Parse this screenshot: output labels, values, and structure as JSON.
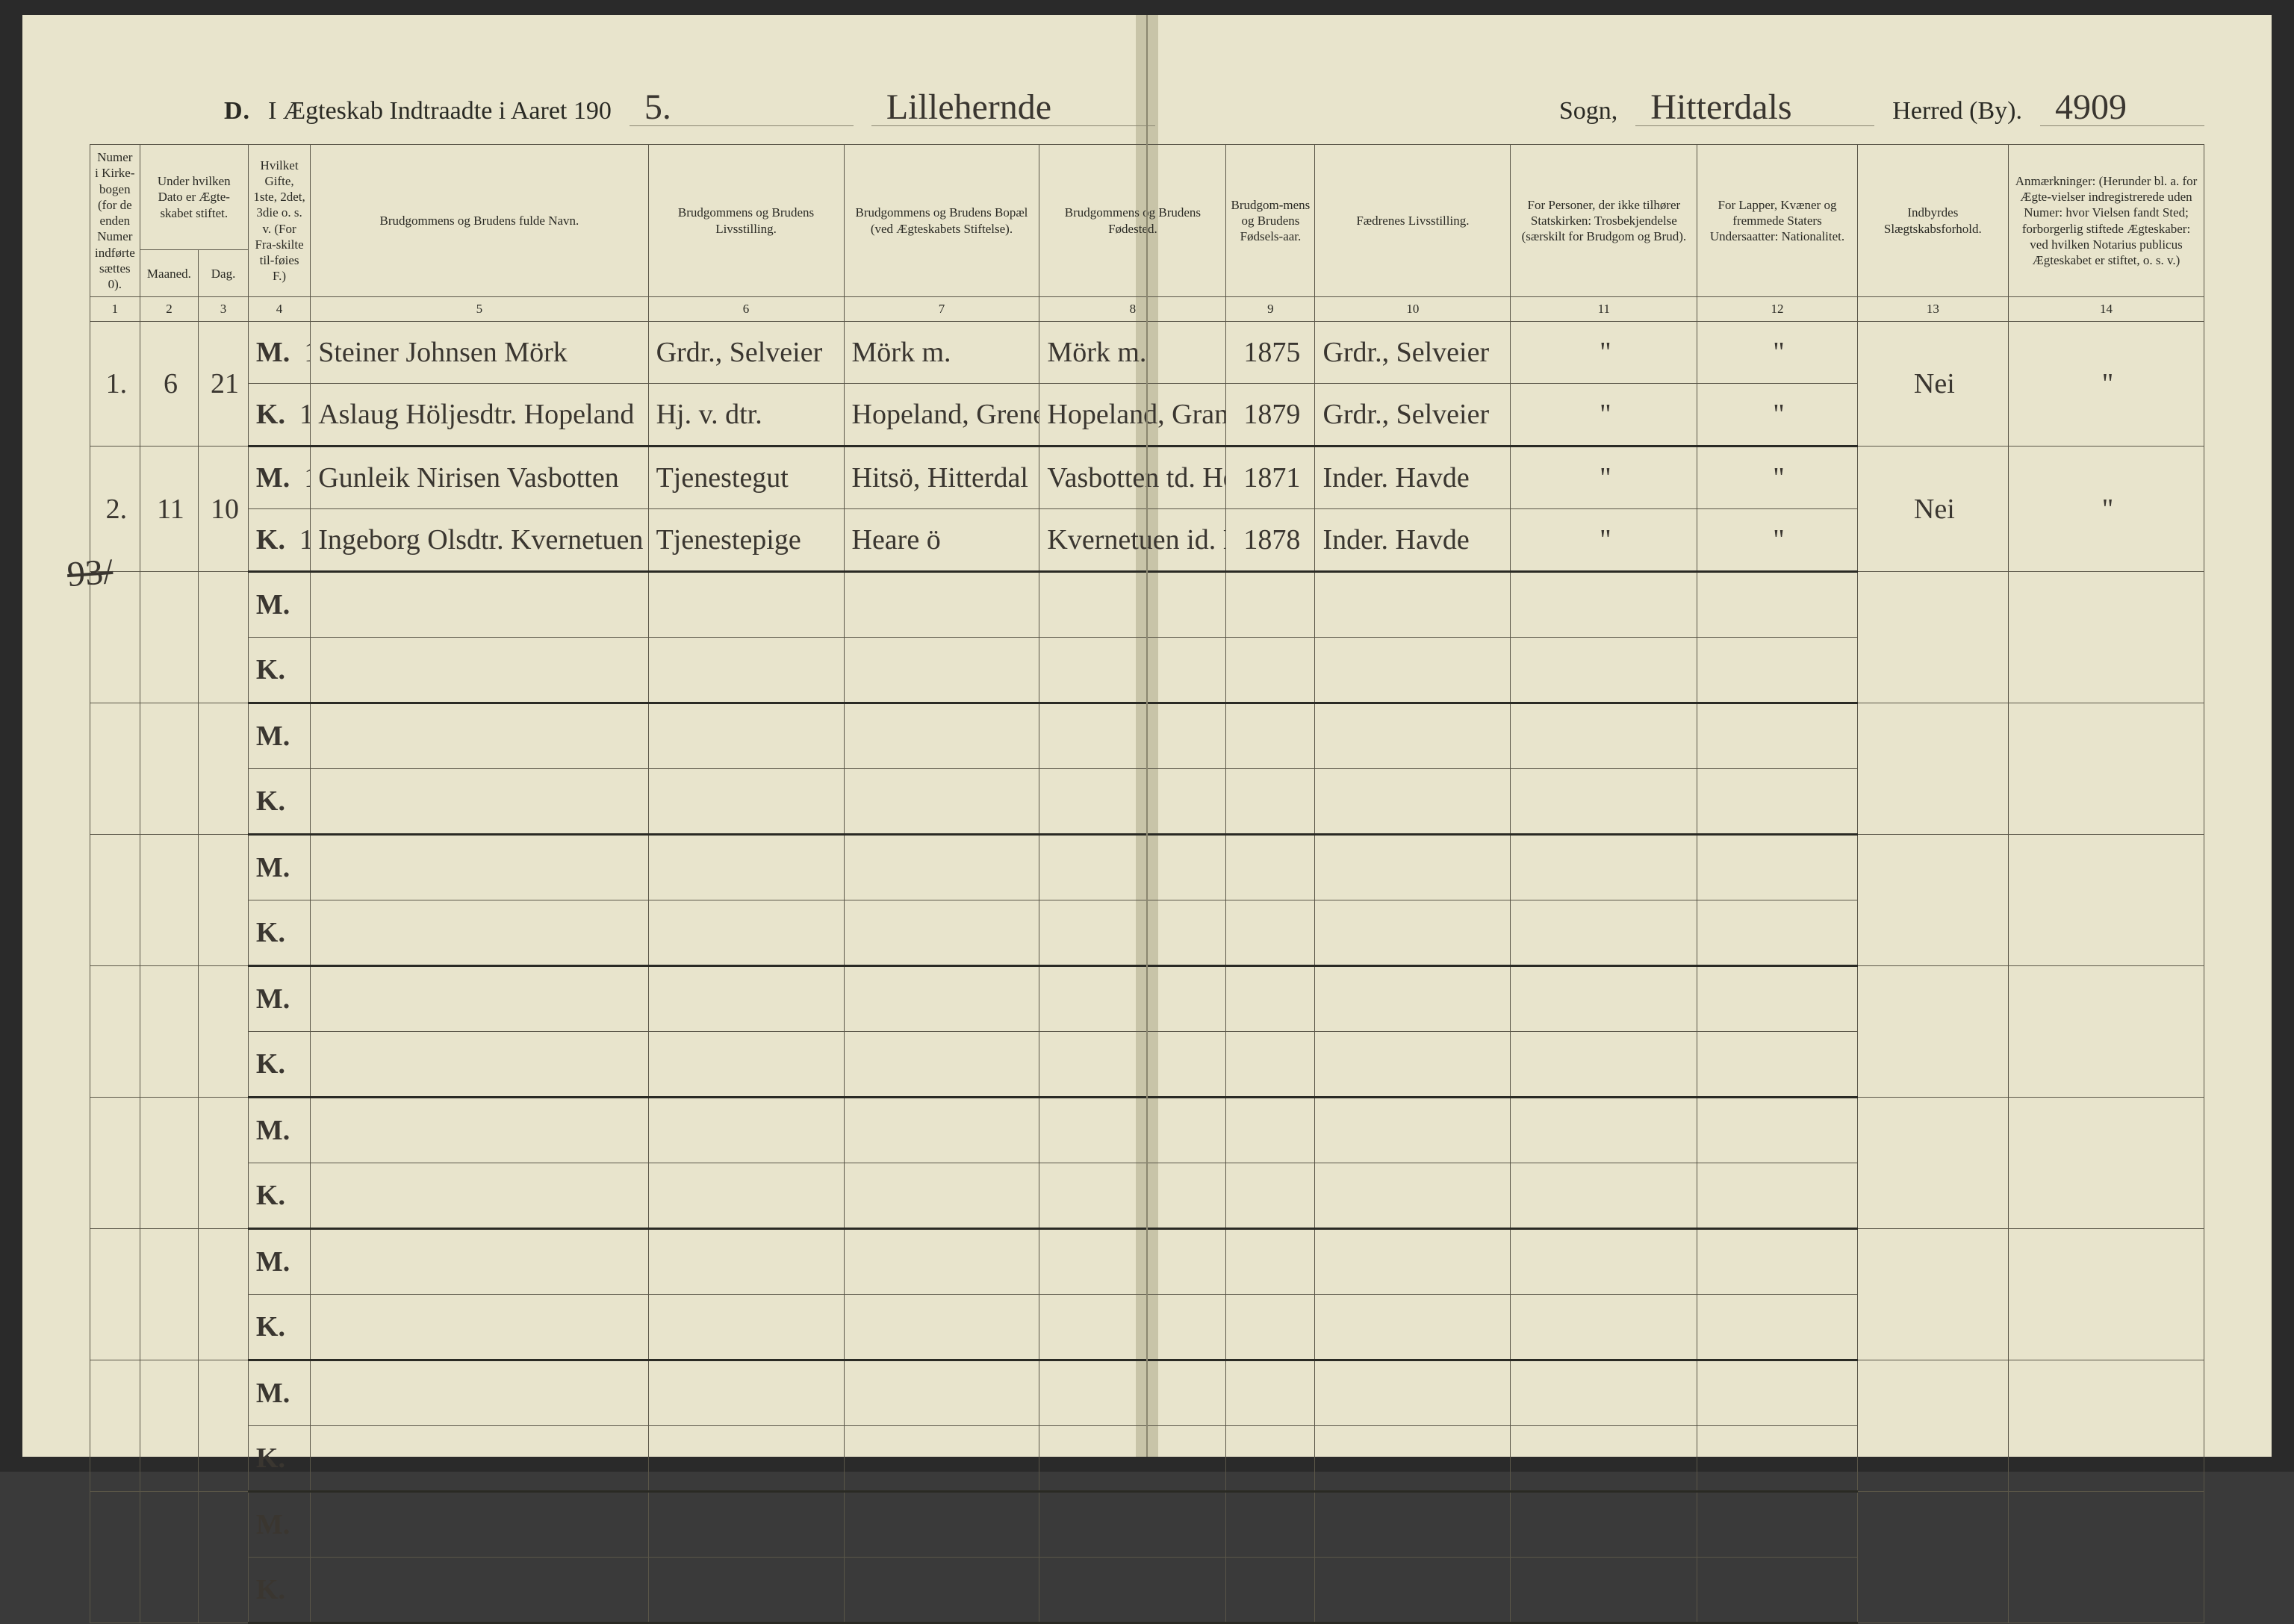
{
  "header": {
    "prefix": "D.",
    "title": "I Ægteskab Indtraadte i Aaret 190",
    "year_suffix": "5.",
    "sogn_value": "Lillehernde",
    "sogn_label": "Sogn,",
    "herred_value": "Hitterdals",
    "herred_label": "Herred (By).",
    "page_no": "4909"
  },
  "columns": {
    "h1": "Numer i Kirke-bogen (for de enden Numer indførte sættes 0).",
    "h2_top": "Under hvilken Dato er Ægte-skabet stiftet.",
    "h2a": "Maaned.",
    "h2b": "Dag.",
    "h4": "Hvilket Gifte, 1ste, 2det, 3die o. s. v. (For Fra-skilte til-føies F.)",
    "h5": "Brudgommens og Brudens fulde Navn.",
    "h6": "Brudgommens og Brudens Livsstilling.",
    "h7": "Brudgommens og Brudens Bopæl (ved Ægteskabets Stiftelse).",
    "h8": "Brudgommens og Brudens Fødested.",
    "h9": "Brudgom-mens og Brudens Fødsels-aar.",
    "h10": "Fædrenes Livsstilling.",
    "h11": "For Personer, der ikke tilhører Statskirken: Trosbekjendelse (særskilt for Brudgom og Brud).",
    "h12": "For Lapper, Kvæner og fremmede Staters Undersaatter: Nationalitet.",
    "h13": "Indbyrdes Slægtskabsforhold.",
    "h14": "Anmærkninger: (Herunder bl. a. for Ægte-vielser indregistrerede uden Numer: hvor Vielsen fandt Sted; forborgerlig stiftede Ægteskaber: ved hvilken Notarius publicus Ægteskabet er stiftet, o. s. v.)"
  },
  "colnums": [
    "1",
    "2",
    "3",
    "4",
    "5",
    "6",
    "7",
    "8",
    "9",
    "10",
    "11",
    "12",
    "13",
    "14"
  ],
  "rows": [
    {
      "no": "1.",
      "month": "6",
      "day": "21",
      "m": {
        "mk": "M.",
        "gifte": "1",
        "name": "Steiner Johnsen Mörk",
        "stand": "Grdr., Selveier",
        "bopael": "Mörk m.",
        "fodested": "Mörk m.",
        "aar": "1875",
        "faedre": "Grdr., Selveier",
        "c11": "\"",
        "c12": "\"",
        "c13": "",
        "c14": ""
      },
      "k": {
        "mk": "K.",
        "gifte": "1",
        "name": "Aslaug Höljesdtr. Hopeland",
        "stand": "Hj. v. dtr.",
        "bopael": "Hopeland, Grene, derude Bygd.",
        "fodested": "Hopeland, Granehernde Sgd.",
        "aar": "1879",
        "faedre": "Grdr., Selveier",
        "c11": "\"",
        "c12": "\"",
        "c13": "Nei",
        "c14": "\""
      }
    },
    {
      "no": "2.",
      "month": "11",
      "day": "10",
      "m": {
        "mk": "M.",
        "gifte": "1",
        "name": "Gunleik Nirisen Vasbotten",
        "stand": "Tjenestegut",
        "bopael": "Hitsö, Hitterdal",
        "fodested": "Vasbotten td. Heare ö",
        "aar": "1871",
        "faedre": "Inder. Havde",
        "c11": "\"",
        "c12": "\"",
        "c13": "",
        "c14": ""
      },
      "k": {
        "mk": "K.",
        "gifte": "1",
        "name": "Ingeborg Olsdtr. Kvernetuen",
        "stand": "Tjenestepige",
        "bopael": "Heare ö",
        "fodested": "Kvernetuen id. Engrav, Hitterdal",
        "aar": "1878",
        "faedre": "Inder. Havde",
        "c11": "\"",
        "c12": "\"",
        "c13": "Nei",
        "c14": "\""
      }
    }
  ],
  "margin_note": "93/",
  "empty_pairs": 8,
  "colors": {
    "paper": "#e8e4cc",
    "rule": "#5a5648",
    "ink": "#3a3630"
  }
}
